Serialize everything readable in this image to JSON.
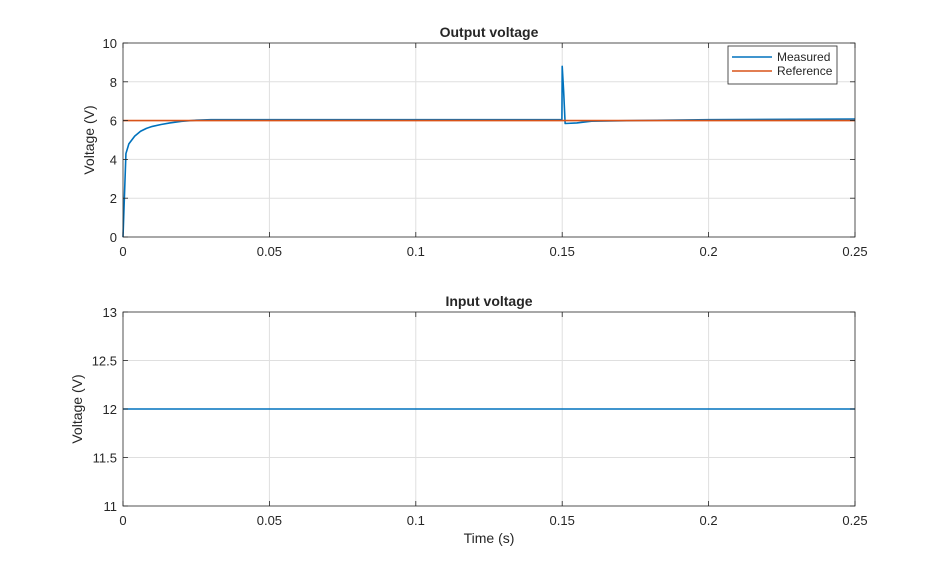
{
  "chart_data": [
    {
      "type": "line",
      "title": "Output voltage",
      "xlabel": "",
      "ylabel": "Voltage (V)",
      "xlim": [
        0,
        0.25
      ],
      "ylim": [
        0,
        10
      ],
      "xticks": [
        0,
        0.05,
        0.1,
        0.15,
        0.2,
        0.25
      ],
      "xtick_labels": [
        "0",
        "0.05",
        "0.1",
        "0.15",
        "0.2",
        "0.25"
      ],
      "yticks": [
        0,
        2,
        4,
        6,
        8,
        10
      ],
      "ytick_labels": [
        "0",
        "2",
        "4",
        "6",
        "8",
        "10"
      ],
      "grid": true,
      "legend_position": "top-right",
      "series": [
        {
          "name": "Measured",
          "color": "#0072BD",
          "x": [
            0,
            0.001,
            0.002,
            0.004,
            0.006,
            0.008,
            0.01,
            0.013,
            0.016,
            0.02,
            0.025,
            0.03,
            0.05,
            0.1,
            0.1499,
            0.15,
            0.1505,
            0.151,
            0.155,
            0.16,
            0.2,
            0.25
          ],
          "y": [
            0,
            4.3,
            4.8,
            5.2,
            5.45,
            5.6,
            5.7,
            5.8,
            5.88,
            5.96,
            6.02,
            6.05,
            6.05,
            6.05,
            6.05,
            8.8,
            7.5,
            5.85,
            5.88,
            5.97,
            6.05,
            6.08
          ]
        },
        {
          "name": "Reference",
          "color": "#D95319",
          "x": [
            0,
            0.25
          ],
          "y": [
            6,
            6
          ]
        }
      ]
    },
    {
      "type": "line",
      "title": "Input voltage",
      "xlabel": "Time (s)",
      "ylabel": "Voltage (V)",
      "xlim": [
        0,
        0.25
      ],
      "ylim": [
        11,
        13
      ],
      "xticks": [
        0,
        0.05,
        0.1,
        0.15,
        0.2,
        0.25
      ],
      "xtick_labels": [
        "0",
        "0.05",
        "0.1",
        "0.15",
        "0.2",
        "0.25"
      ],
      "yticks": [
        11,
        11.5,
        12,
        12.5,
        13
      ],
      "ytick_labels": [
        "11",
        "11.5",
        "12",
        "12.5",
        "13"
      ],
      "grid": true,
      "series": [
        {
          "color": "#0072BD",
          "x": [
            0,
            0.25
          ],
          "y": [
            12,
            12
          ]
        }
      ]
    }
  ]
}
